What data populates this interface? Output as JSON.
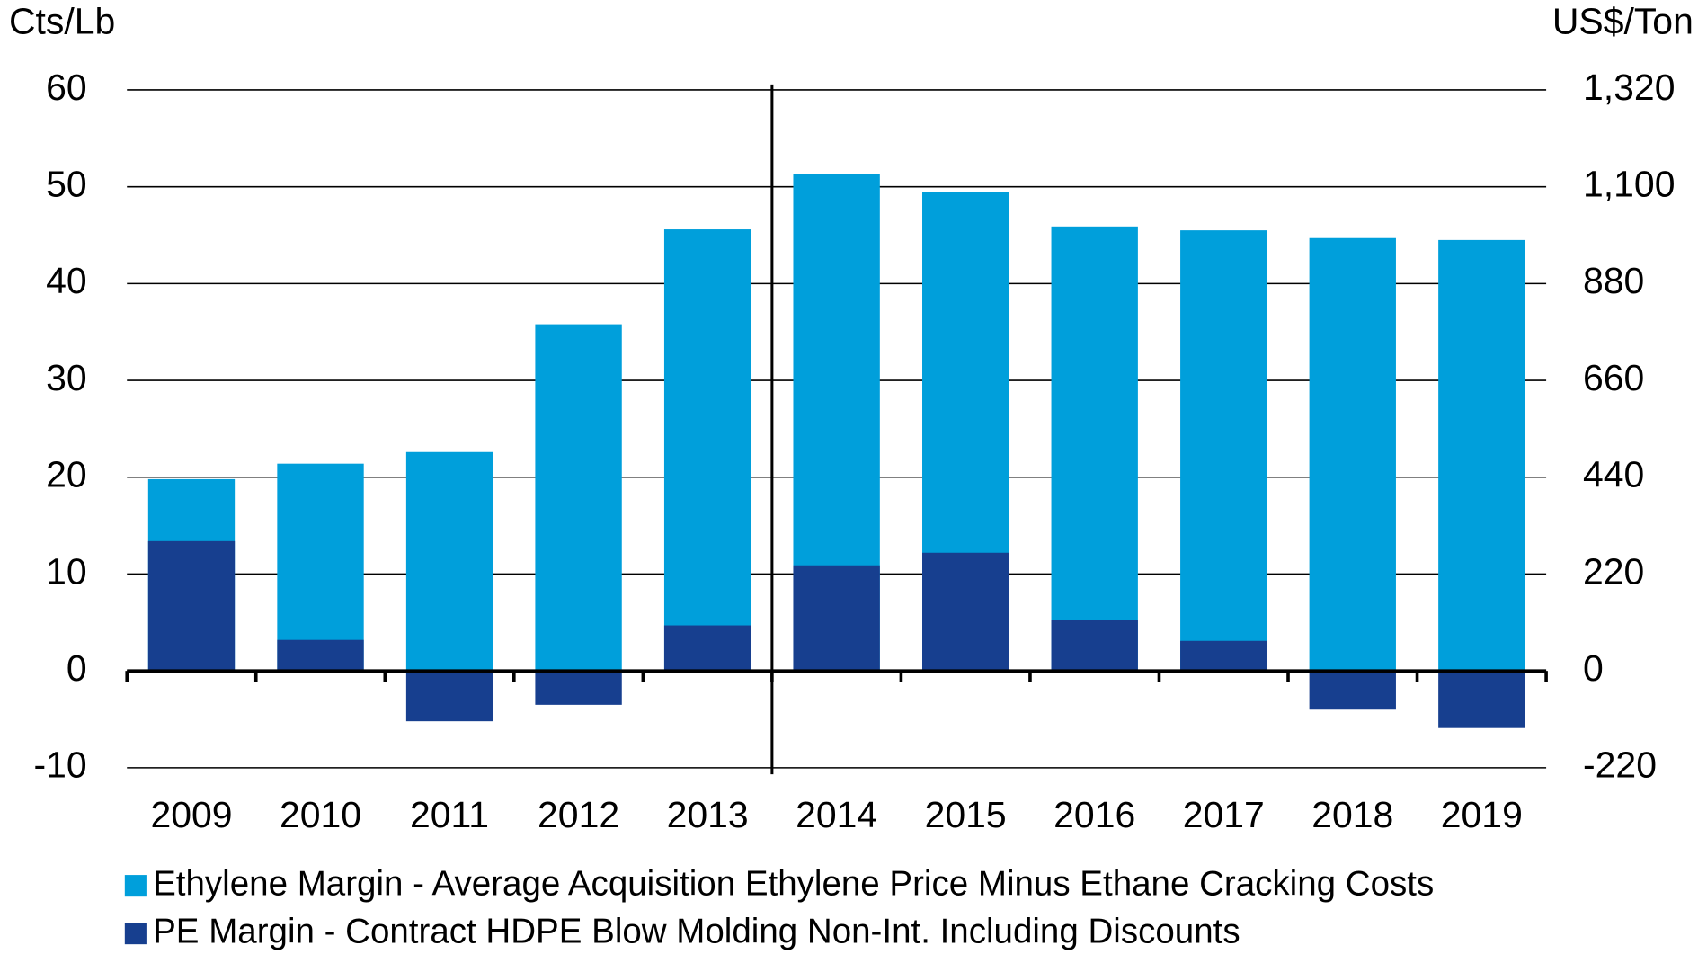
{
  "chart_data": {
    "type": "bar",
    "overlap": true,
    "y_label": "Cts/Lb",
    "y2_label": "US$/Ton",
    "categories": [
      "2009",
      "2010",
      "2011",
      "2012",
      "2013",
      "2014",
      "2015",
      "2016",
      "2017",
      "2018",
      "2019"
    ],
    "series": [
      {
        "name": "Ethylene Margin - Average Acquisition Ethylene Price Minus Ethane Cracking Costs",
        "color": "#009fdb",
        "values": [
          19.8,
          21.4,
          22.6,
          35.8,
          45.6,
          51.3,
          49.5,
          45.9,
          45.5,
          44.7,
          44.5
        ]
      },
      {
        "name": "PE Margin - Contract HDPE Blow Molding Non-Int. Including Discounts",
        "color": "#173f8f",
        "values": [
          13.4,
          3.2,
          -5.2,
          -3.5,
          4.7,
          10.9,
          12.2,
          5.3,
          3.1,
          -4.0,
          -5.9
        ]
      }
    ],
    "ylim": [
      -10,
      60
    ],
    "yticks": [
      -10,
      0,
      10,
      20,
      30,
      40,
      50,
      60
    ],
    "y2lim": [
      -220,
      1320
    ],
    "y2ticks": [
      -220,
      0,
      220,
      440,
      660,
      880,
      {
        "value": 1100,
        "label": "1,100"
      },
      {
        "value": 1320,
        "label": "1,320"
      }
    ],
    "grid": true
  }
}
